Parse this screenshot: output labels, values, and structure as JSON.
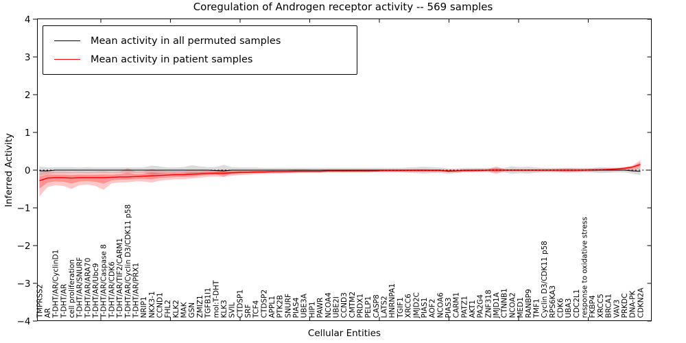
{
  "title": "Coregulation of Androgen receptor activity -- 569 samples",
  "legend": {
    "items": [
      {
        "label": "Mean activity in all permuted samples",
        "color": "#000000"
      },
      {
        "label": "Mean activity in patient samples",
        "color": "#ff0000"
      }
    ]
  },
  "axes": {
    "ylabel": "Inferred Activity",
    "xlabel": "Cellular Entities",
    "yticks": [
      -4,
      -3,
      -2,
      -1,
      0,
      1,
      2,
      3,
      4
    ]
  },
  "chart_data": {
    "type": "line",
    "title": "Coregulation of Androgen receptor activity -- 569 samples",
    "xlabel": "Cellular Entities",
    "ylabel": "Inferred Activity",
    "ylim": [
      -4,
      4
    ],
    "grid": false,
    "legend_position": "upper left",
    "zero_line_dashed": true,
    "categories": [
      "TMPRSS2",
      "AR",
      "T-DHT/AR/CyclinD1",
      "T-DHT/AR",
      "cell proliferation",
      "T-DHT/AR/SNURF",
      "T-DHT/AR/ARA70",
      "T-DHT/AR/Ubc9",
      "T-DHT/AR/Caspase 8",
      "T-DHT/AR/CDK6",
      "T-DHT/AR/TIF2/CARM1",
      "T-DHT/AR/Cyclin D3/CDK11 p58",
      "T-DHT/AR/PRX1",
      "NRIP1",
      "NKX3-1",
      "CCND1",
      "FHL2",
      "KLK2",
      "MAK",
      "GSN",
      "ZMIZ1",
      "TGFB1I1",
      "mol:T-DHT",
      "KLK3",
      "SVIL",
      "CTDSP1",
      "SRF",
      "TCF4",
      "CTDSP2",
      "APPL1",
      "PTK2B",
      "SNURF",
      "PIAS4",
      "UBE3A",
      "HIP1",
      "PAWR",
      "NCOA4",
      "UBE2I",
      "CCND3",
      "CMTM2",
      "PRDX1",
      "PELP1",
      "CASP8",
      "LATS2",
      "HNRNPA1",
      "TGIF1",
      "XRCC6",
      "JMJD2C",
      "PIAS1",
      "AOF2",
      "NCOA6",
      "PIAS3",
      "CARM1",
      "PATZ1",
      "AKT1",
      "PA2G4",
      "ZNF318",
      "JMJD1A",
      "CTNNB1",
      "NCOA2",
      "MED1",
      "RANBP9",
      "TMF1",
      "Cyclin D3/CDK11 p58",
      "RPS6KA3",
      "CDK6",
      "UBA3",
      "CDC2L1",
      "response to oxidative stress",
      "FKBP4",
      "XRCC5",
      "BRCA1",
      "VAV3",
      "PRKDC",
      "DNA-PK",
      "CDKN2A"
    ],
    "series": [
      {
        "name": "Mean activity in all permuted samples",
        "color": "#000000",
        "band_color": "#000000",
        "band_opacity": 0.14,
        "mean": [
          -0.02,
          -0.02,
          0,
          0,
          0,
          0,
          0,
          0,
          0,
          0,
          0,
          0,
          0,
          0,
          0,
          0,
          0,
          0,
          0,
          0,
          0,
          0,
          -0.01,
          -0.02,
          0,
          0,
          0,
          0,
          0,
          0,
          0,
          0,
          0,
          0,
          0,
          0,
          0,
          0,
          0,
          0,
          0,
          0,
          0,
          0,
          0,
          0,
          0,
          0,
          0,
          0,
          0,
          -0.03,
          -0.02,
          0,
          0,
          0,
          0,
          0,
          0,
          0,
          0,
          0,
          0,
          0,
          0,
          0,
          0,
          0,
          0,
          0,
          0,
          0,
          0,
          0,
          -0.02,
          -0.03
        ],
        "lower": [
          -0.14,
          -0.11,
          -0.08,
          -0.08,
          -0.08,
          -0.07,
          -0.08,
          -0.07,
          -0.07,
          -0.07,
          -0.07,
          -0.07,
          -0.07,
          -0.07,
          -0.12,
          -0.1,
          -0.07,
          -0.07,
          -0.08,
          -0.13,
          -0.1,
          -0.08,
          -0.1,
          -0.18,
          -0.08,
          -0.07,
          -0.07,
          -0.07,
          -0.06,
          -0.06,
          -0.06,
          -0.06,
          -0.06,
          -0.06,
          -0.06,
          -0.06,
          -0.06,
          -0.06,
          -0.06,
          -0.06,
          -0.06,
          -0.06,
          -0.06,
          -0.06,
          -0.06,
          -0.06,
          -0.07,
          -0.08,
          -0.09,
          -0.08,
          -0.07,
          -0.1,
          -0.08,
          -0.06,
          -0.06,
          -0.06,
          -0.06,
          -0.06,
          -0.06,
          -0.1,
          -0.08,
          -0.09,
          -0.07,
          -0.06,
          -0.06,
          -0.06,
          -0.06,
          -0.06,
          -0.06,
          -0.06,
          -0.08,
          -0.07,
          -0.06,
          -0.06,
          -0.09,
          -0.13
        ],
        "upper": [
          0.1,
          0.07,
          0.08,
          0.08,
          0.08,
          0.07,
          0.08,
          0.07,
          0.07,
          0.07,
          0.07,
          0.07,
          0.07,
          0.07,
          0.12,
          0.1,
          0.07,
          0.07,
          0.08,
          0.13,
          0.1,
          0.08,
          0.08,
          0.14,
          0.08,
          0.07,
          0.07,
          0.07,
          0.06,
          0.06,
          0.06,
          0.06,
          0.06,
          0.06,
          0.06,
          0.06,
          0.06,
          0.06,
          0.06,
          0.06,
          0.06,
          0.06,
          0.06,
          0.06,
          0.06,
          0.06,
          0.07,
          0.08,
          0.09,
          0.08,
          0.07,
          0.04,
          0.04,
          0.06,
          0.06,
          0.06,
          0.06,
          0.06,
          0.06,
          0.1,
          0.08,
          0.09,
          0.07,
          0.06,
          0.06,
          0.06,
          0.06,
          0.06,
          0.06,
          0.06,
          0.08,
          0.07,
          0.06,
          0.06,
          0.05,
          0.07
        ]
      },
      {
        "name": "Mean activity in patient samples",
        "color": "#ff0000",
        "band_color": "#ff0000",
        "band_opacity": 0.22,
        "mean": [
          -0.28,
          -0.21,
          -0.2,
          -0.2,
          -0.21,
          -0.2,
          -0.2,
          -0.2,
          -0.2,
          -0.19,
          -0.18,
          -0.18,
          -0.17,
          -0.16,
          -0.15,
          -0.14,
          -0.13,
          -0.12,
          -0.12,
          -0.11,
          -0.1,
          -0.09,
          -0.08,
          -0.08,
          -0.07,
          -0.06,
          -0.06,
          -0.05,
          -0.05,
          -0.04,
          -0.04,
          -0.04,
          -0.03,
          -0.03,
          -0.03,
          -0.03,
          -0.02,
          -0.02,
          -0.02,
          -0.02,
          -0.02,
          -0.02,
          -0.02,
          -0.01,
          -0.01,
          -0.01,
          -0.01,
          -0.01,
          -0.01,
          -0.01,
          -0.01,
          -0.02,
          -0.02,
          -0.01,
          -0.01,
          -0.01,
          0,
          0,
          0,
          0,
          0,
          0,
          0,
          0,
          0,
          0,
          0,
          0,
          0,
          0.01,
          0.01,
          0.02,
          0.03,
          0.05,
          0.08,
          0.15
        ],
        "lower": [
          -0.7,
          -0.45,
          -0.4,
          -0.42,
          -0.5,
          -0.4,
          -0.38,
          -0.42,
          -0.52,
          -0.35,
          -0.33,
          -0.32,
          -0.3,
          -0.3,
          -0.33,
          -0.28,
          -0.26,
          -0.24,
          -0.24,
          -0.22,
          -0.2,
          -0.18,
          -0.17,
          -0.18,
          -0.15,
          -0.13,
          -0.12,
          -0.11,
          -0.1,
          -0.09,
          -0.09,
          -0.08,
          -0.08,
          -0.07,
          -0.07,
          -0.07,
          -0.06,
          -0.06,
          -0.06,
          -0.06,
          -0.06,
          -0.06,
          -0.05,
          -0.05,
          -0.05,
          -0.05,
          -0.05,
          -0.05,
          -0.05,
          -0.05,
          -0.05,
          -0.06,
          -0.06,
          -0.05,
          -0.05,
          -0.04,
          -0.04,
          -0.1,
          -0.04,
          -0.04,
          -0.04,
          -0.04,
          -0.04,
          -0.04,
          -0.04,
          -0.05,
          -0.06,
          -0.05,
          -0.04,
          -0.04,
          -0.03,
          -0.03,
          -0.02,
          -0.01,
          0.0,
          0.04
        ],
        "upper": [
          -0.05,
          -0.02,
          -0.04,
          -0.04,
          -0.05,
          -0.04,
          -0.05,
          -0.04,
          -0.03,
          -0.05,
          -0.04,
          0.05,
          -0.04,
          -0.03,
          0.03,
          -0.01,
          -0.02,
          -0.02,
          -0.02,
          0.0,
          -0.01,
          0.0,
          0.0,
          0.02,
          0.0,
          0.0,
          0.01,
          0.01,
          0.01,
          0.01,
          0.01,
          0.01,
          0.02,
          0.02,
          0.01,
          0.01,
          0.02,
          0.02,
          0.02,
          0.02,
          0.02,
          0.02,
          0.02,
          0.02,
          0.02,
          0.02,
          0.02,
          0.03,
          0.03,
          0.02,
          0.02,
          0.02,
          0.02,
          0.02,
          0.02,
          0.03,
          0.03,
          0.1,
          0.03,
          0.03,
          0.03,
          0.03,
          0.03,
          0.03,
          0.03,
          0.04,
          0.05,
          0.04,
          0.04,
          0.04,
          0.05,
          0.05,
          0.06,
          0.08,
          0.12,
          0.26
        ]
      }
    ]
  }
}
